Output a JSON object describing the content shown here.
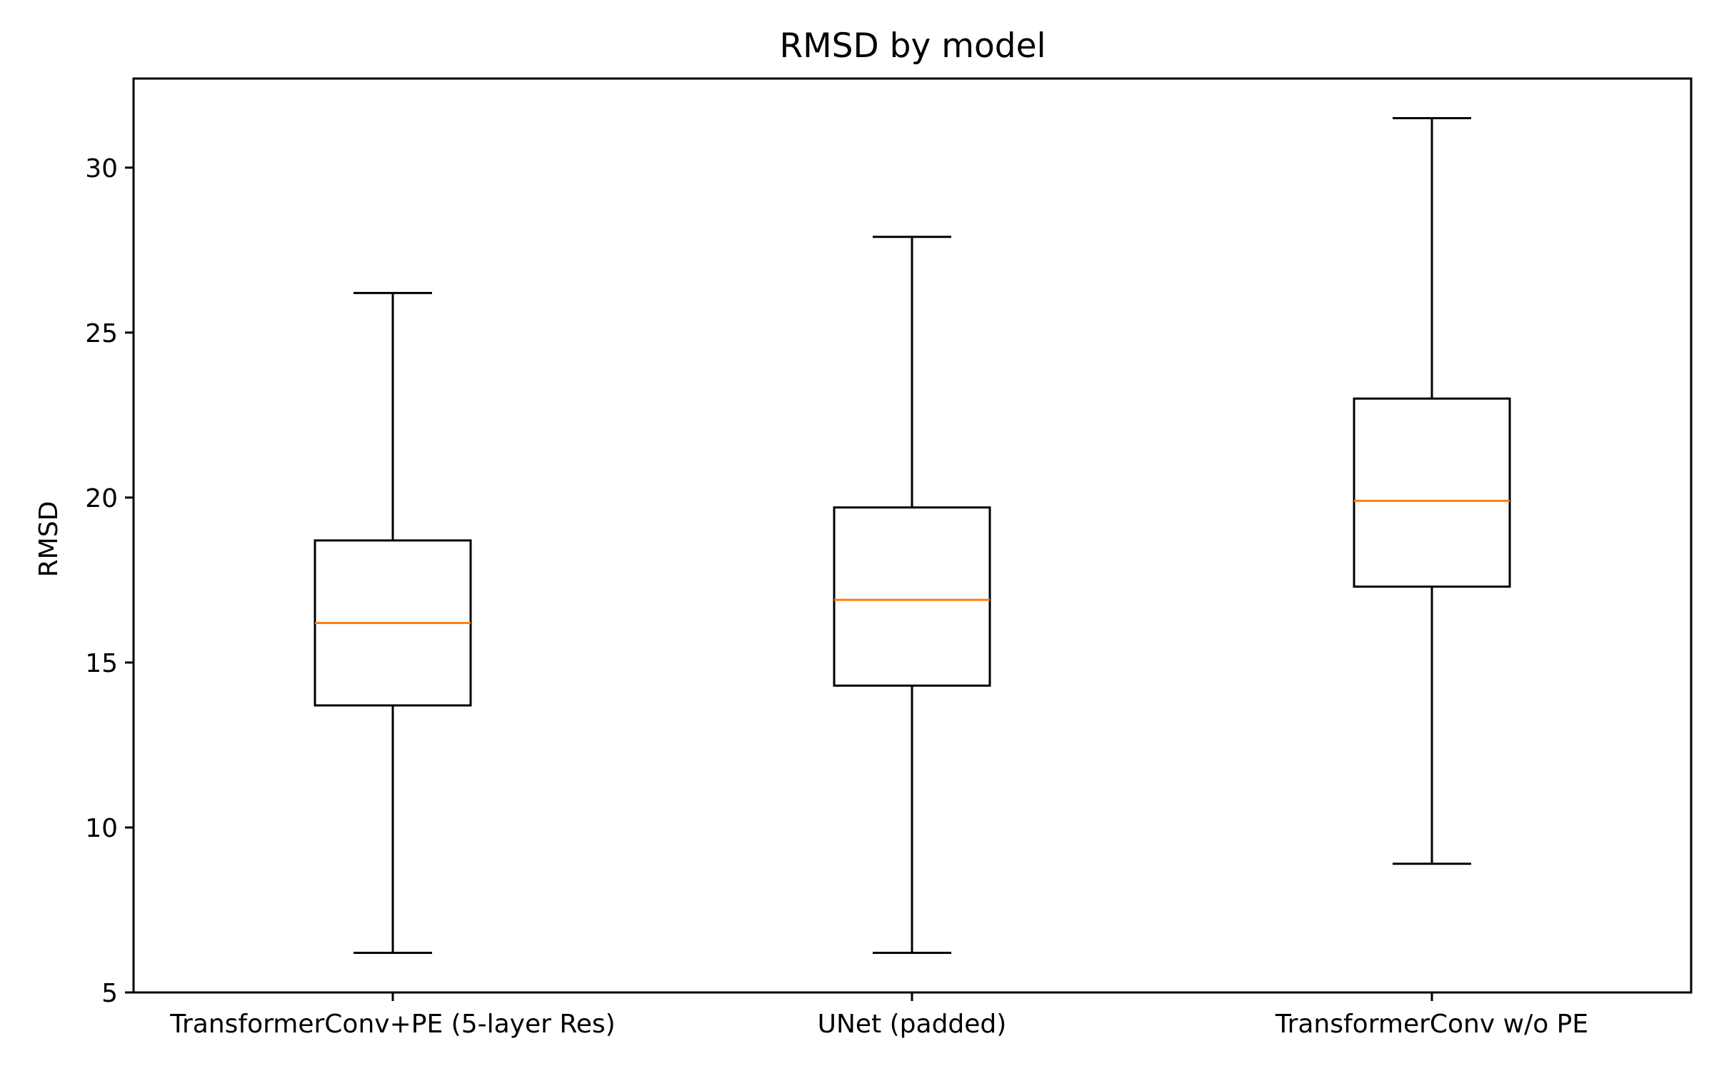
{
  "chart_data": {
    "type": "box",
    "title": "RMSD by model",
    "xlabel": "",
    "ylabel": "RMSD",
    "ylim": [
      5,
      32.7
    ],
    "yticks": [
      5,
      10,
      15,
      20,
      25,
      30
    ],
    "grid": false,
    "categories": [
      "TransformerConv+PE (5-layer Res)",
      "UNet (padded)",
      "TransformerConv w/o PE"
    ],
    "boxes": [
      {
        "category": "TransformerConv+PE (5-layer Res)",
        "whisker_low": 6.2,
        "q1": 13.7,
        "median": 16.2,
        "q3": 18.7,
        "whisker_high": 26.2
      },
      {
        "category": "UNet (padded)",
        "whisker_low": 6.2,
        "q1": 14.3,
        "median": 16.9,
        "q3": 19.7,
        "whisker_high": 27.9
      },
      {
        "category": "TransformerConv w/o PE",
        "whisker_low": 8.9,
        "q1": 17.3,
        "median": 19.9,
        "q3": 23.0,
        "whisker_high": 31.5
      }
    ],
    "colors": {
      "box": "#000000",
      "median": "#ff7f0e",
      "whisker": "#000000"
    }
  }
}
